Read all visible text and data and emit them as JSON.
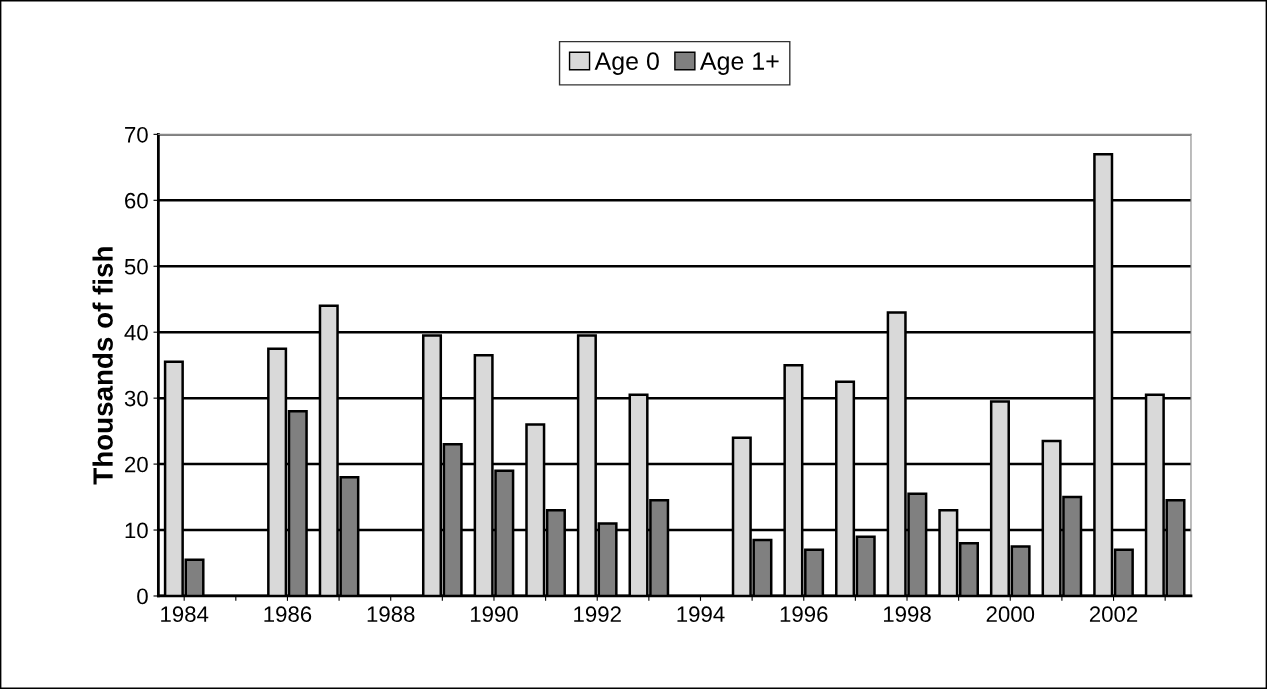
{
  "chart_data": {
    "type": "bar",
    "ylabel": "Thousands of fish",
    "categories": [
      "1984",
      null,
      "1986",
      null,
      "1988",
      null,
      "1990",
      null,
      "1992",
      null,
      "1994",
      null,
      "1996",
      null,
      "1998",
      null,
      "2000",
      null,
      "2002",
      null
    ],
    "series": [
      {
        "name": "Age 0",
        "color": "#d9d9d9",
        "values": [
          35.5,
          null,
          37.5,
          44,
          null,
          39.5,
          36.5,
          26,
          39.5,
          30.5,
          null,
          24,
          35,
          32.5,
          43,
          13,
          29.5,
          23.5,
          67,
          30.5
        ]
      },
      {
        "name": "Age 1+",
        "color": "#808080",
        "values": [
          5.5,
          null,
          28,
          18,
          null,
          23,
          19,
          13,
          11,
          14.5,
          null,
          8.5,
          7,
          9,
          15.5,
          8,
          7.5,
          15,
          7,
          14.5
        ]
      }
    ],
    "ylim": [
      0,
      70
    ],
    "yticks": [
      0,
      10,
      20,
      30,
      40,
      50,
      60,
      70
    ],
    "grid": "y",
    "legend": "top"
  }
}
